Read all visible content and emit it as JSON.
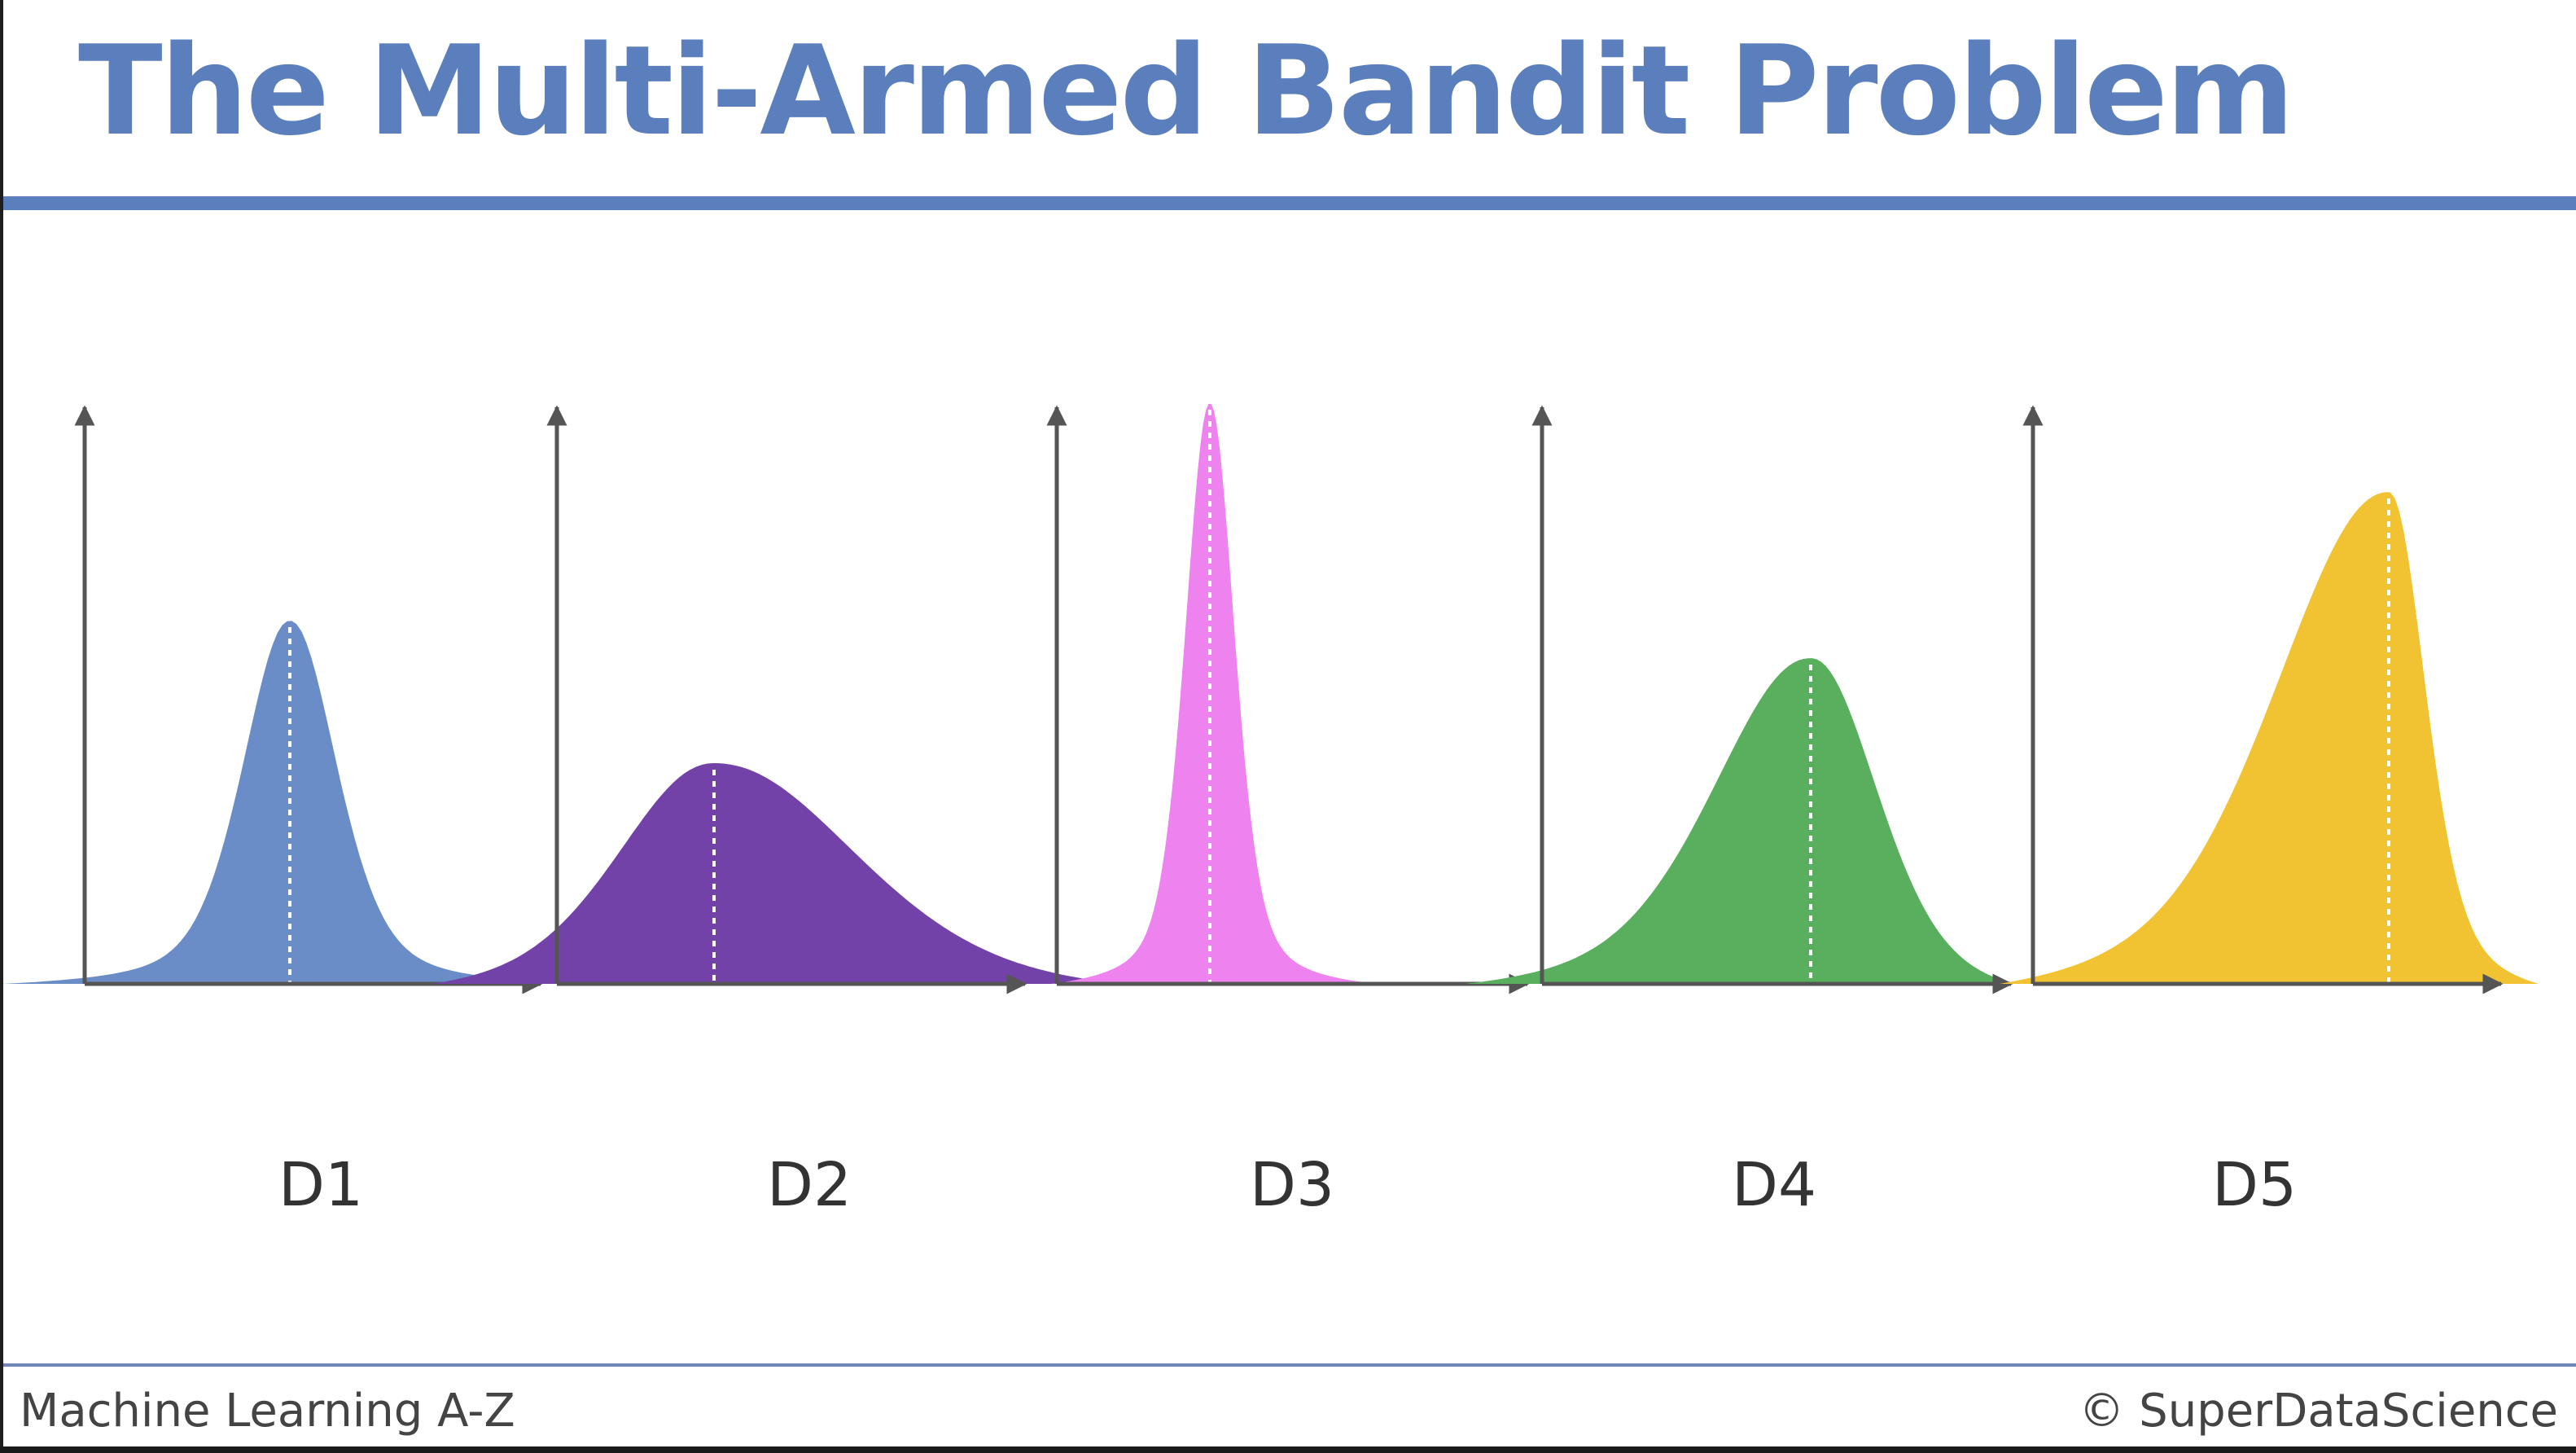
{
  "slide": {
    "title": "The Multi-Armed Bandit Problem",
    "title_color": "#5b7fbd",
    "footer_left": "Machine Learning A-Z",
    "footer_right": "© SuperDataScience"
  },
  "diagram": {
    "distributions": [
      {
        "label": "D1",
        "color": "#6a8cc7",
        "shape": "peaked bell"
      },
      {
        "label": "D2",
        "color": "#7342a8",
        "shape": "wide low right-skewed hump"
      },
      {
        "label": "D3",
        "color": "#ee82ee",
        "shape": "tall narrow spike"
      },
      {
        "label": "D4",
        "color": "#5aaf5f",
        "shape": "left-skewed hump"
      },
      {
        "label": "D5",
        "color": "#f1c232",
        "shape": "tall peak, long left tail"
      }
    ],
    "axis_color": "#555555",
    "mean_line": "white dotted vertical line at peak"
  }
}
